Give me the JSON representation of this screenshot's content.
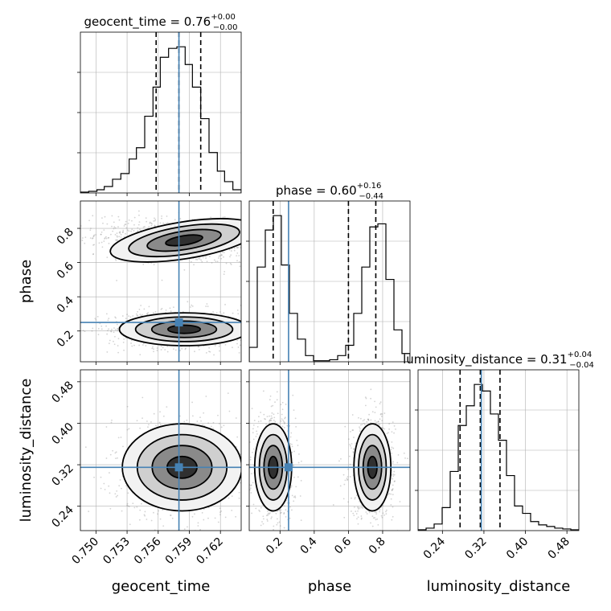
{
  "chart_data": {
    "type": "corner",
    "parameters": [
      "geocent_time",
      "phase",
      "luminosity_distance"
    ],
    "truths": {
      "geocent_time": 0.758,
      "phase": 0.25,
      "luminosity_distance": 0.315
    },
    "colors": {
      "truth": "#4682b4",
      "hist": "#000000",
      "points": "#808080"
    },
    "ranges": {
      "geocent_time": [
        0.7485,
        0.764
      ],
      "phase": [
        0.02,
        0.96
      ],
      "luminosity_distance": [
        0.193,
        0.503
      ]
    },
    "ticks": {
      "geocent_time": [
        0.75,
        0.753,
        0.756,
        0.759,
        0.762
      ],
      "phase": [
        0.2,
        0.4,
        0.6,
        0.8
      ],
      "luminosity_distance": [
        0.24,
        0.32,
        0.4,
        0.48
      ]
    },
    "tick_labels": {
      "geocent_time": [
        "0.750",
        "0.753",
        "0.756",
        "0.759",
        "0.762"
      ],
      "phase": [
        "0.2",
        "0.4",
        "0.6",
        "0.8"
      ],
      "luminosity_distance": [
        "0.24",
        "0.32",
        "0.40",
        "0.48"
      ]
    },
    "titles": [
      {
        "param": "geocent_time",
        "main": "geocent_time = 0.76",
        "plus": "+0.00",
        "minus": "−0.00"
      },
      {
        "param": "phase",
        "main": "phase = 0.60",
        "plus": "+0.16",
        "minus": "−0.44"
      },
      {
        "param": "luminosity_distance",
        "main": "luminosity_distance = 0.31",
        "plus": "+0.04",
        "minus": "−0.04"
      }
    ],
    "quantiles": {
      "geocent_time": [
        0.7558,
        0.758,
        0.7601
      ],
      "phase": [
        0.16,
        0.6,
        0.76
      ],
      "luminosity_distance": [
        0.274,
        0.313,
        0.351
      ]
    },
    "histograms": {
      "geocent_time": {
        "edges": [
          0.7485,
          0.7493,
          0.7501,
          0.7508,
          0.7516,
          0.7524,
          0.7532,
          0.7539,
          0.7547,
          0.7555,
          0.7562,
          0.757,
          0.7578,
          0.7586,
          0.7593,
          0.7601,
          0.7609,
          0.7617,
          0.7624,
          0.7632,
          0.764
        ],
        "counts": [
          1,
          2,
          4,
          8,
          17,
          24,
          42,
          56,
          95,
          131,
          168,
          179,
          181,
          159,
          131,
          92,
          50,
          27,
          14,
          4
        ]
      },
      "phase": {
        "edges": [
          0.02,
          0.067,
          0.114,
          0.161,
          0.208,
          0.255,
          0.302,
          0.349,
          0.396,
          0.443,
          0.49,
          0.537,
          0.584,
          0.631,
          0.678,
          0.725,
          0.772,
          0.819,
          0.866,
          0.913,
          0.96
        ],
        "counts": [
          14,
          92,
          128,
          142,
          94,
          47,
          22,
          6,
          1,
          1,
          2,
          6,
          16,
          47,
          92,
          131,
          134,
          80,
          31,
          8
        ]
      },
      "luminosity_distance": {
        "edges": [
          0.193,
          0.2085,
          0.224,
          0.2395,
          0.255,
          0.2705,
          0.286,
          0.3015,
          0.317,
          0.3325,
          0.348,
          0.3635,
          0.379,
          0.3945,
          0.41,
          0.4255,
          0.441,
          0.4565,
          0.472,
          0.4875,
          0.503
        ],
        "counts": [
          1,
          3,
          8,
          28,
          72,
          128,
          152,
          178,
          170,
          142,
          110,
          67,
          30,
          21,
          11,
          7,
          5,
          3,
          2,
          1
        ]
      }
    },
    "sample_clusters": {
      "phase_vs_geocent_time": [
        {
          "x": 0.7585,
          "y": 0.73,
          "sx": 0.003,
          "sy": 0.045,
          "tilt": -0.5
        },
        {
          "x": 0.7585,
          "y": 0.21,
          "sx": 0.0026,
          "sy": 0.04,
          "tilt": 0.0
        }
      ],
      "luminosity_distance_vs_geocent_time": [
        {
          "x": 0.7583,
          "y": 0.315,
          "sx": 0.0024,
          "sy": 0.035,
          "tilt": 0.0
        }
      ],
      "luminosity_distance_vs_phase": [
        {
          "x": 0.16,
          "y": 0.315,
          "sx": 0.045,
          "sy": 0.035,
          "tilt": 0.0
        },
        {
          "x": 0.74,
          "y": 0.315,
          "sx": 0.045,
          "sy": 0.035,
          "tilt": 0.0
        }
      ]
    }
  }
}
